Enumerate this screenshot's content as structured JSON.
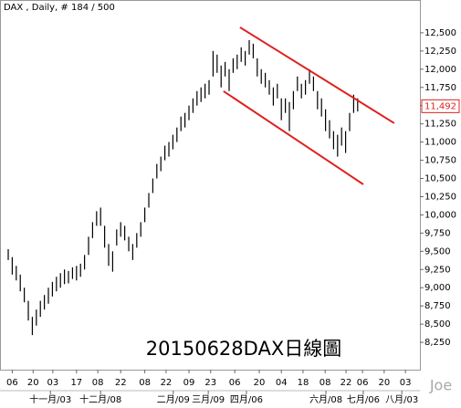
{
  "chart_data": {
    "type": "ohlc",
    "header": "DAX , Daily, # 184 / 500",
    "watermark": "20150628DAX日線圖",
    "signature": "Joe",
    "color": "#000000",
    "highs": [
      9530,
      9420,
      9300,
      9180,
      9000,
      8820,
      8600,
      8700,
      8820,
      8900,
      9000,
      9080,
      9150,
      9200,
      9250,
      9230,
      9280,
      9300,
      9330,
      9450,
      9700,
      9900,
      10050,
      10100,
      9850,
      9600,
      9500,
      9800,
      9900,
      9850,
      9700,
      9600,
      9750,
      9900,
      10100,
      10300,
      10500,
      10700,
      10800,
      10950,
      11000,
      11100,
      11200,
      11350,
      11400,
      11500,
      11600,
      11700,
      11750,
      11800,
      11850,
      12250,
      12200,
      12050,
      12100,
      12000,
      12150,
      12200,
      12300,
      12250,
      12400,
      12350,
      12150,
      12000,
      11950,
      11850,
      11750,
      11800,
      11600,
      11600,
      11550,
      11700,
      11900,
      11800,
      11850,
      12000,
      11900,
      11700,
      11600,
      11450,
      11300,
      11150,
      11100,
      11200,
      11150,
      11400,
      11650,
      11600
    ],
    "lows": [
      9380,
      9180,
      9100,
      8950,
      8800,
      8550,
      8350,
      8480,
      8600,
      8700,
      8780,
      8880,
      8950,
      9000,
      9050,
      9060,
      9120,
      9100,
      9150,
      9250,
      9450,
      9680,
      9850,
      9850,
      9550,
      9300,
      9220,
      9580,
      9700,
      9650,
      9500,
      9380,
      9550,
      9700,
      9900,
      10100,
      10300,
      10500,
      10600,
      10750,
      10800,
      10900,
      11000,
      11150,
      11200,
      11300,
      11400,
      11500,
      11550,
      11600,
      11650,
      11900,
      11950,
      11750,
      11900,
      11700,
      11950,
      12000,
      12100,
      12050,
      12200,
      12150,
      11900,
      11800,
      11750,
      11650,
      11500,
      11600,
      11300,
      11400,
      11150,
      11450,
      11700,
      11600,
      11650,
      11800,
      11700,
      11450,
      11350,
      11150,
      11050,
      10900,
      10800,
      10950,
      10850,
      11150,
      11400,
      11420
    ],
    "xlim": [
      -2.05,
      102.5
    ],
    "ylim": [
      7875,
      12950
    ],
    "yticks": [
      {
        "value": 8250,
        "label": "8,250"
      },
      {
        "value": 8500,
        "label": "8,500"
      },
      {
        "value": 8750,
        "label": "8,750"
      },
      {
        "value": 9000,
        "label": "9,000"
      },
      {
        "value": 9250,
        "label": "9,250"
      },
      {
        "value": 9500,
        "label": "9,500"
      },
      {
        "value": 9750,
        "label": "9,750"
      },
      {
        "value": 10000,
        "label": "10,000"
      },
      {
        "value": 10250,
        "label": "10,250"
      },
      {
        "value": 10500,
        "label": "10,500"
      },
      {
        "value": 10750,
        "label": "10,750"
      },
      {
        "value": 11000,
        "label": "11,000"
      },
      {
        "value": 11250,
        "label": "11,250"
      },
      {
        "value": 11500,
        "label": "11,500"
      },
      {
        "value": 11750,
        "label": "11,750"
      },
      {
        "value": 12000,
        "label": "12,000"
      },
      {
        "value": 12250,
        "label": "12,250"
      },
      {
        "value": 12500,
        "label": "12,500"
      }
    ],
    "xticks": [
      {
        "value": 1,
        "label": "06"
      },
      {
        "value": 6.2,
        "label": "20"
      },
      {
        "value": 11.1,
        "label": "03"
      },
      {
        "value": 17,
        "label": "17"
      },
      {
        "value": 22.3,
        "label": "08"
      },
      {
        "value": 28,
        "label": "22"
      },
      {
        "value": 34,
        "label": "08"
      },
      {
        "value": 39.3,
        "label": "22"
      },
      {
        "value": 45,
        "label": "09"
      },
      {
        "value": 50.4,
        "label": "23"
      },
      {
        "value": 56.4,
        "label": "06"
      },
      {
        "value": 62.5,
        "label": "20"
      },
      {
        "value": 68,
        "label": "04"
      },
      {
        "value": 73.4,
        "label": "18"
      },
      {
        "value": 78.9,
        "label": "08"
      },
      {
        "value": 84.1,
        "label": "22"
      },
      {
        "value": 88.2,
        "label": "06"
      },
      {
        "value": 93.6,
        "label": "20"
      },
      {
        "value": 98.9,
        "label": "03"
      }
    ],
    "month_ticks": [
      {
        "value": 10.5,
        "label": "十一月/03"
      },
      {
        "value": 23,
        "label": "十二月/08"
      },
      {
        "value": 41.1,
        "label": "二月/09"
      },
      {
        "value": 49.8,
        "label": "三月/09"
      },
      {
        "value": 59.3,
        "label": "四月/06"
      },
      {
        "value": 79.1,
        "label": "六月/08"
      },
      {
        "value": 88.4,
        "label": "七月/06"
      },
      {
        "value": 98,
        "label": "八月/03"
      }
    ],
    "last_price": {
      "value": 11492,
      "label": "11,492"
    },
    "trend_color": "#e02020",
    "trendlines": [
      {
        "x": [
          57.7,
          96.1
        ],
        "y": [
          12575,
          11259
        ]
      },
      {
        "x": [
          53.6,
          88.4
        ],
        "y": [
          11698,
          10419
        ]
      }
    ]
  }
}
